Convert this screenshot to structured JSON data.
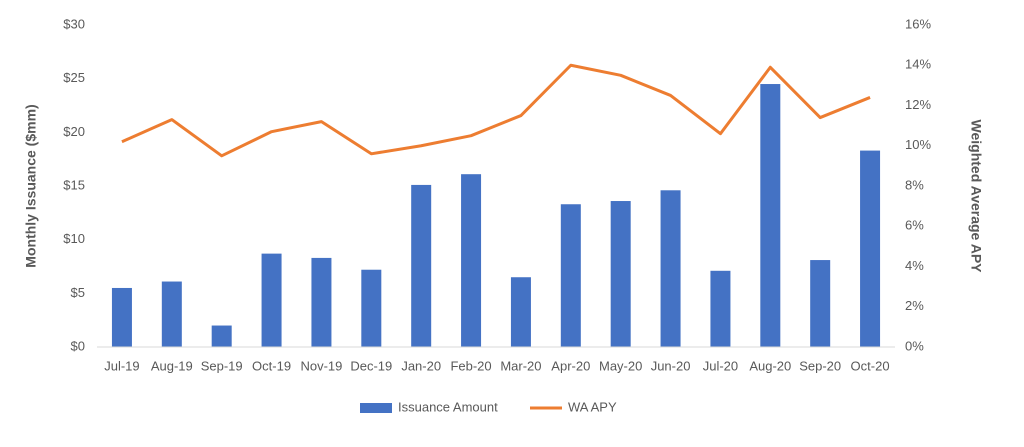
{
  "chart_data": {
    "type": "bar_line",
    "categories": [
      "Jul-19",
      "Aug-19",
      "Sep-19",
      "Oct-19",
      "Nov-19",
      "Dec-19",
      "Jan-20",
      "Feb-20",
      "Mar-20",
      "Apr-20",
      "May-20",
      "Jun-20",
      "Jul-20",
      "Aug-20",
      "Sep-20",
      "Oct-20"
    ],
    "series": [
      {
        "name": "Issuance Amount",
        "type": "bar",
        "color": "#4472c4",
        "axis": "y",
        "values": [
          5.5,
          6.1,
          2.0,
          8.7,
          8.3,
          7.2,
          15.1,
          16.1,
          6.5,
          13.3,
          13.6,
          14.6,
          7.1,
          24.5,
          8.1,
          18.3
        ]
      },
      {
        "name": "WA APY",
        "type": "line",
        "color": "#ed7d31",
        "axis": "y2",
        "values": [
          10.2,
          11.3,
          9.5,
          10.7,
          11.2,
          9.6,
          10.0,
          10.5,
          11.5,
          14.0,
          13.5,
          12.5,
          10.6,
          13.9,
          11.4,
          12.4
        ]
      }
    ],
    "y_label": "Monthly Issuance ($mm)",
    "y2_label": "Weighted Average APY",
    "ylim": [
      0,
      30
    ],
    "yticks": [
      {
        "value": 0,
        "label": "$0"
      },
      {
        "value": 5,
        "label": "$5"
      },
      {
        "value": 10,
        "label": "$10"
      },
      {
        "value": 15,
        "label": "$15"
      },
      {
        "value": 20,
        "label": "$20"
      },
      {
        "value": 25,
        "label": "$25"
      },
      {
        "value": 30,
        "label": "$30"
      }
    ],
    "y2lim": [
      0,
      16
    ],
    "y2ticks": [
      {
        "value": 0,
        "label": "0%"
      },
      {
        "value": 2,
        "label": "2%"
      },
      {
        "value": 4,
        "label": "4%"
      },
      {
        "value": 6,
        "label": "6%"
      },
      {
        "value": 8,
        "label": "8%"
      },
      {
        "value": 10,
        "label": "10%"
      },
      {
        "value": 12,
        "label": "12%"
      },
      {
        "value": 14,
        "label": "14%"
      },
      {
        "value": 16,
        "label": "16%"
      }
    ],
    "grid": false,
    "legend": "bottom"
  }
}
